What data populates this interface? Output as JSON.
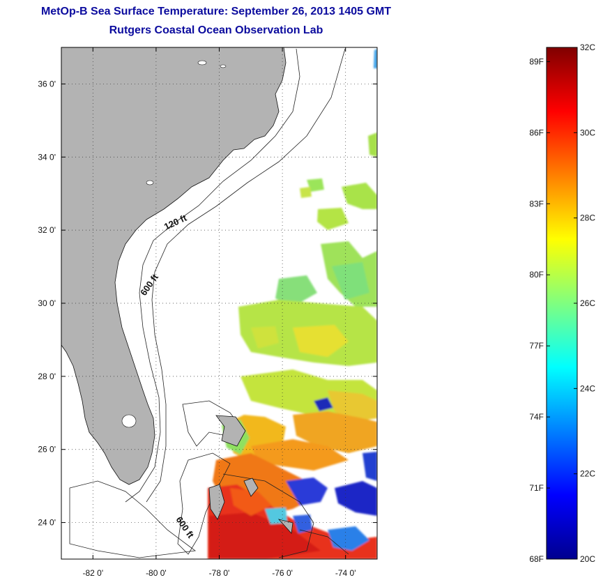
{
  "title": {
    "line1": "MetOp-B Sea Surface Temperature:  September 26, 2013 1405 GMT",
    "line2": "Rutgers Coastal Ocean Observation Lab"
  },
  "map": {
    "lat_range": [
      23.0,
      37.0
    ],
    "lon_range": [
      -83.0,
      -73.0
    ],
    "lat_ticks": [
      "36 0'",
      "34 0'",
      "32 0'",
      "30 0'",
      "28 0'",
      "26 0'",
      "24 0'"
    ],
    "lon_ticks": [
      "-82 0'",
      "-80 0'",
      "-78 0'",
      "-76 0'",
      "-74 0'"
    ],
    "contour_labels": [
      "120 ft",
      "600 ft",
      "600 ft"
    ],
    "grid": "dotted",
    "land_color": "#b3b3b3"
  },
  "colorbar": {
    "min_c": 20,
    "max_c": 32,
    "celsius_labels": [
      "32C",
      "30C",
      "28C",
      "26C",
      "24C",
      "22C",
      "20C"
    ],
    "fahrenheit_labels": [
      "89F",
      "86F",
      "83F",
      "80F",
      "77F",
      "74F",
      "71F",
      "68F"
    ],
    "colormap": "jet"
  }
}
